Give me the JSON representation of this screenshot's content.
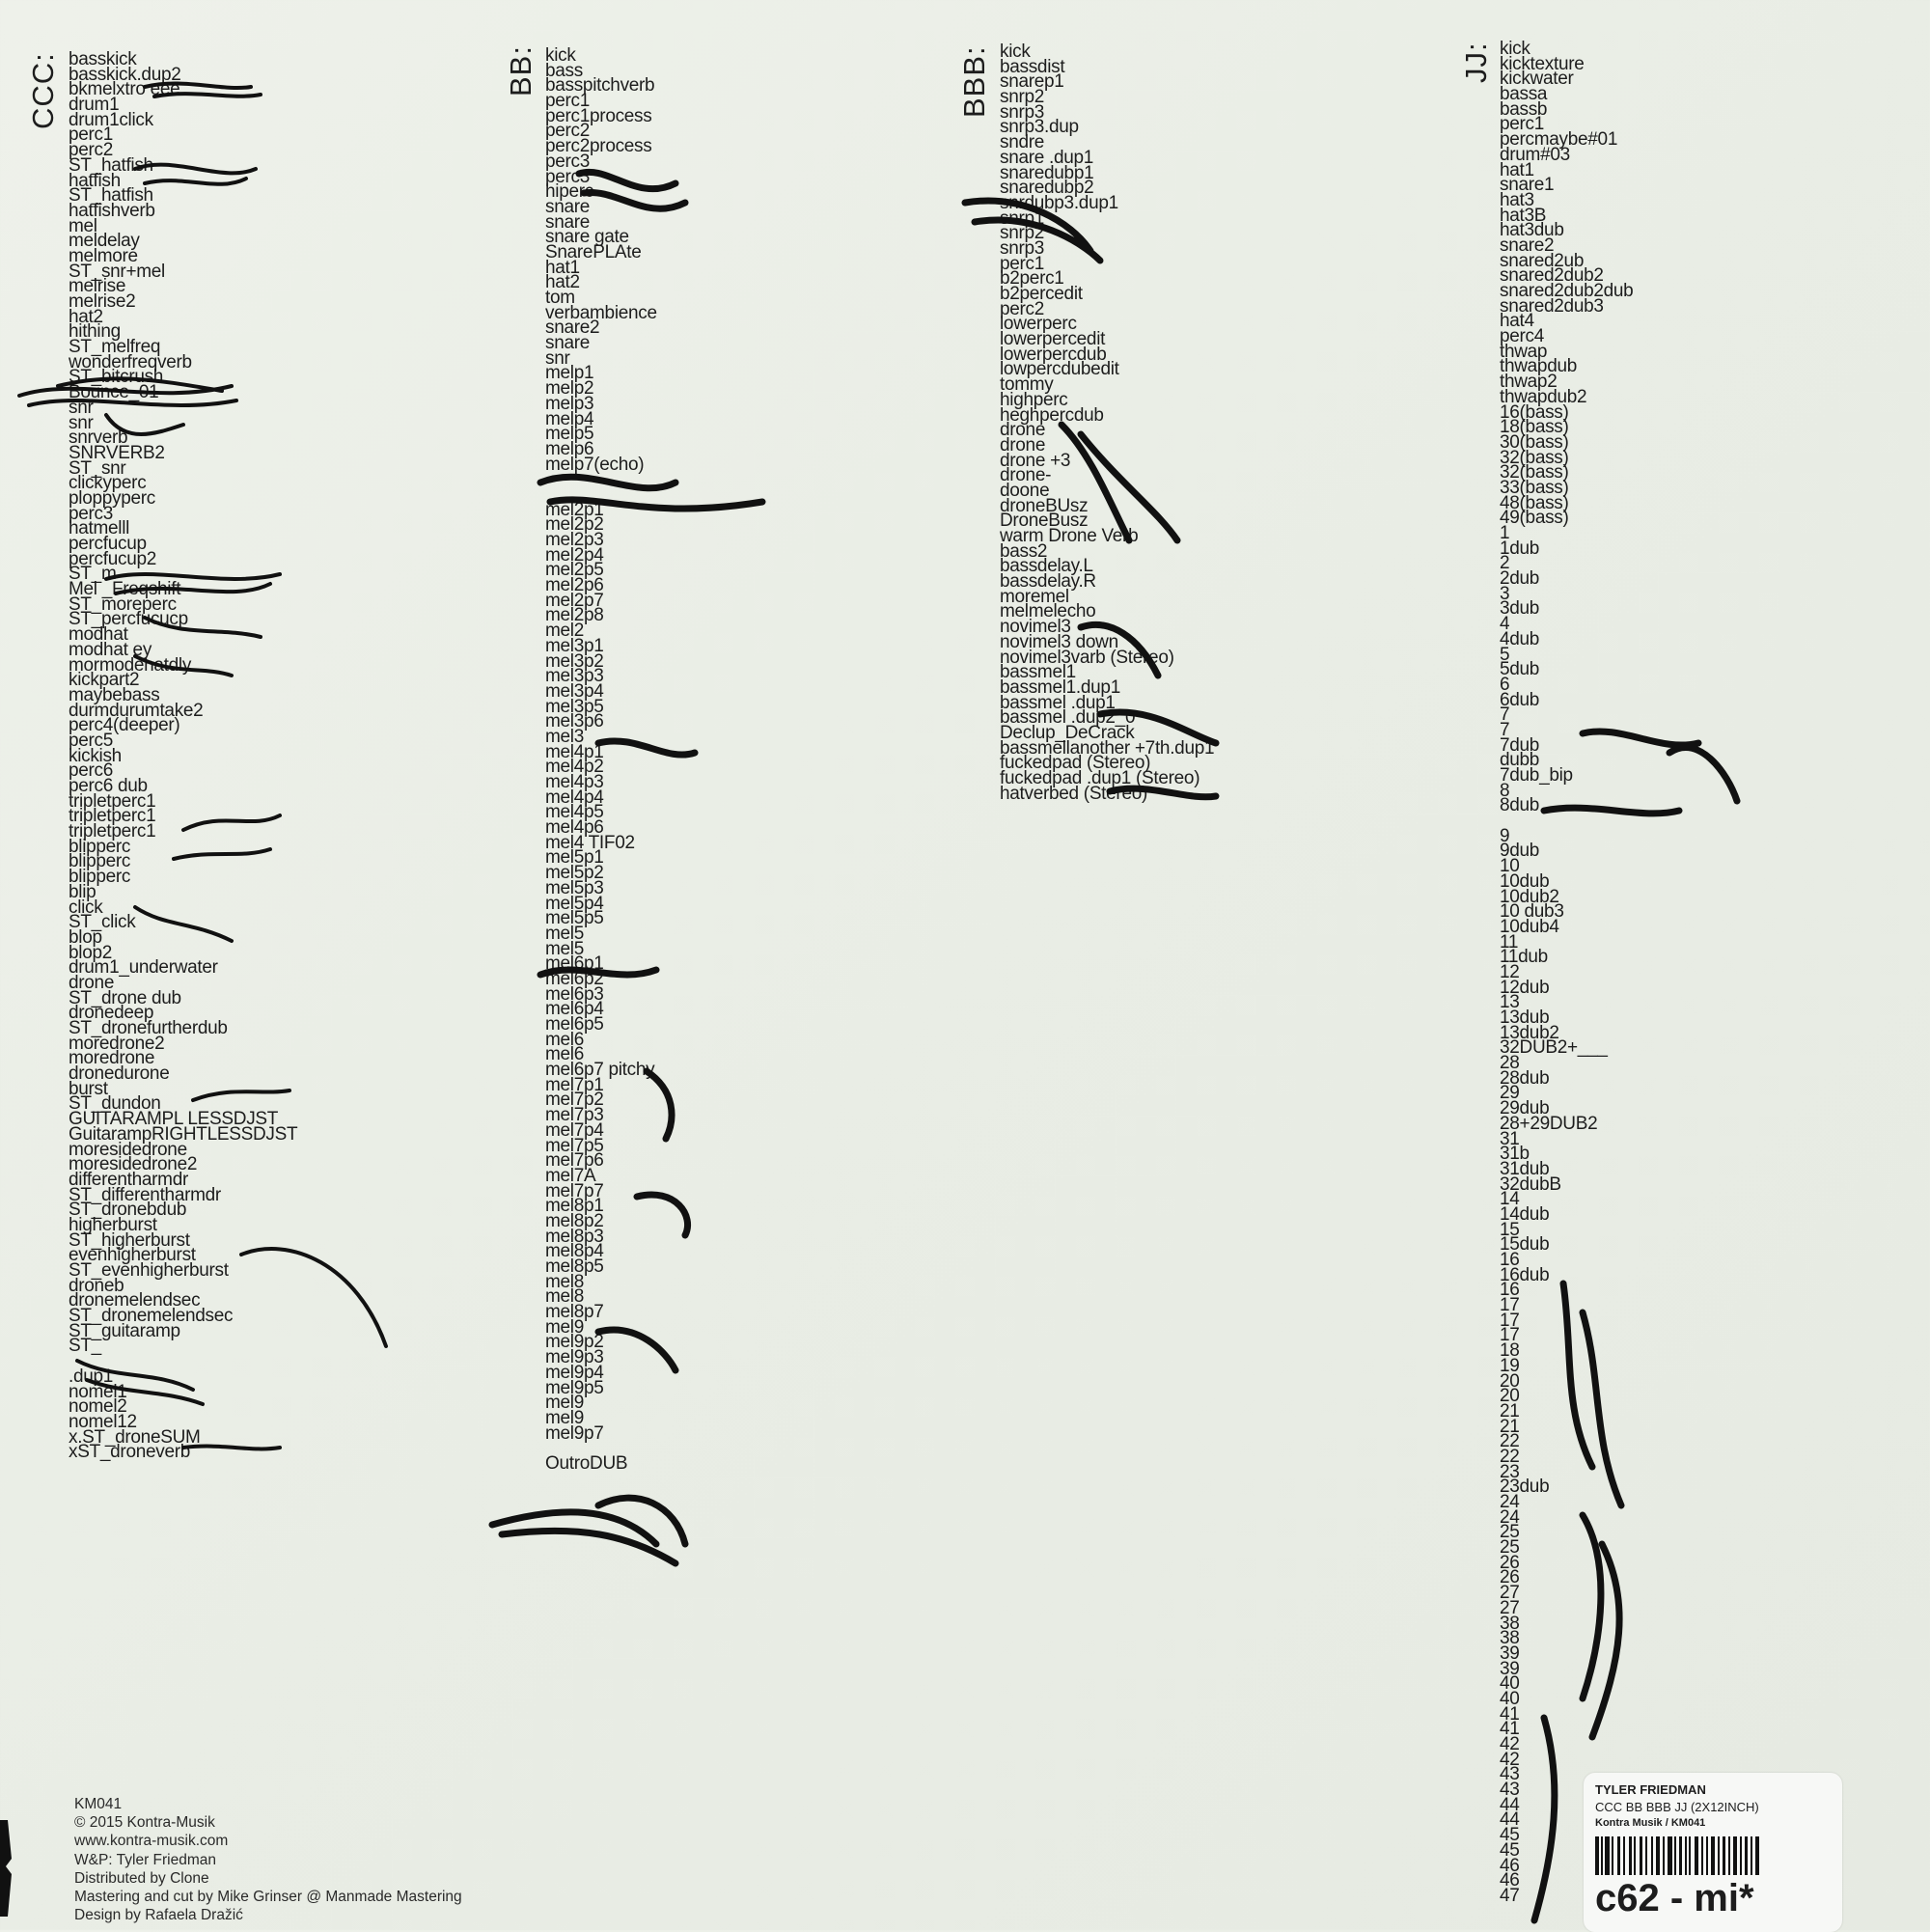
{
  "columns": {
    "ccc": {
      "label": "CCC:",
      "tracks": [
        "basskick",
        "basskick.dup2",
        "bkmelxtro      eee",
        "drum1",
        "drum1click",
        "perc1",
        "perc2",
        "ST_hatfish",
        "hatfish",
        "ST_hatfish",
        "hatfishverb",
        "mel",
        "meldelay",
        "melmore",
        "ST_snr+mel",
        "melrise",
        "melrise2",
        "hat2",
        "hithing",
        "ST_melfreq",
        "wonderfreqverb",
        "ST_bitcrush",
        "                  Bounce_01",
        "snr",
        "snr",
        "snrverb",
        "SNRVERB2",
        "ST_snr",
        "clickyperc",
        "ploppyperc",
        "perc3",
        "hatmelll",
        "percfucup",
        "percfucup2",
        "ST_m",
        "Mel                  _Freqshift",
        "ST_moreperc",
        "ST_percfucucp",
        "modhat",
        "modhat              ey",
        "mormodehatdly",
        "kickpart2",
        "maybebass",
        "durmdurumtake2",
        "perc4(deeper)",
        "perc5",
        "kickish",
        "perc6",
        "perc6 dub",
        "tripletperc1",
        "tripletperc1",
        "tripletperc1",
        "blipperc",
        "blipperc",
        "blipperc",
        "blip",
        "click",
        "ST_click",
        "blop",
        "blop2",
        "drum1_underwater",
        "drone",
        "ST_drone dub",
        "dronedeep",
        "ST_dronefurtherdub",
        "moredrone2",
        "moredrone",
        "dronedurone",
        "burst",
        "ST_dundon",
        "GUITARAMPL   LESSDJST",
        "GuitarampRIGHTLESSDJST",
        "moresidedrone",
        "moresidedrone2",
        "differentharmdr",
        "ST_differentharmdr",
        "ST_dronebdub",
        "higherburst",
        "ST_higherburst",
        "evenhigherburst",
        "ST_evenhigherburst",
        "droneb",
        "dronemelendsec",
        "ST_dronemelendsec",
        "ST_guitaramp",
        "ST_",
        "",
        "  .dup1",
        "nomel1",
        "nomel2",
        "nomel12",
        "x.ST_droneSUM",
        "xST_droneverb"
      ]
    },
    "bb": {
      "label": "BB:",
      "tracks": [
        "kick",
        "bass",
        "basspitchverb",
        "perc1",
        "perc1process",
        "perc2",
        "perc2process",
        "perc3",
        "perc3",
        "hiperc",
        "snare",
        "snare",
        "snare gate",
        "SnarePLAte",
        "hat1",
        "hat2",
        "tom",
        "verbambience",
        "snare2",
        "snare",
        "snr",
        "melp1",
        "melp2",
        "melp3",
        "melp4",
        "melp5",
        "melp6",
        "melp7(echo)",
        "",
        "",
        "mel2p1",
        "mel2p2",
        "mel2p3",
        "mel2p4",
        "mel2p5",
        "mel2p6",
        "mel2p7",
        "mel2p8",
        "mel2",
        "mel3p1",
        "mel3p2",
        "mel3p3",
        "mel3p4",
        "mel3p5",
        "mel3p6",
        "mel3",
        "mel4p1",
        "mel4p2",
        "mel4p3",
        "mel4p4",
        "mel4p5",
        "mel4p6",
        "mel4       TIF02",
        "mel5p1",
        "mel5p2",
        "mel5p3",
        "mel5p4",
        "mel5p5",
        "mel5",
        "          mel5",
        "mel6p1",
        "mel6p2",
        "mel6p3",
        "mel6p4",
        "mel6p5",
        "mel6",
        "mel6",
        "mel6p7            pitchy",
        "mel7p1",
        "mel7p2",
        "mel7p3",
        "mel7p4",
        "mel7p5",
        "mel7p6",
        "mel7A",
        "mel7p7",
        "mel8p1",
        "mel8p2",
        "mel8p3",
        "mel8p4",
        "mel8p5",
        "mel8",
        "mel8",
        "mel8p7",
        "mel9",
        "mel9p2",
        "mel9p3",
        "mel9p4",
        "mel9p5",
        "mel9",
        "mel9",
        "mel9p7",
        "",
        "                OutroDUB"
      ]
    },
    "bbb": {
      "label": "BBB:",
      "tracks": [
        "kick",
        "bassdist",
        "snarep1",
        "snrp2",
        "snrp3",
        "snrp3.dup",
        "sndre",
        "snare       .dup1",
        "snaredubp1",
        "snaredubp2",
        "snrdubp3.dup1",
        "        snrp1",
        "        snrp2",
        "        snrp3",
        "perc1",
        "b2perc1",
        "b2percedit",
        "perc2",
        "lowerperc",
        "lowerpercedit",
        "lowerpercdub",
        "lowpercdubedit",
        "tommy",
        "highperc",
        "heghpercdub",
        "drone",
        "drone",
        "drone          +3",
        "drone-",
        "doone",
        "droneBUsz",
        "DroneBusz",
        "warm Drone Verb",
        "bass2",
        "bassdelay.L",
        "bassdelay.R",
        "moremel",
        "melmelecho",
        "novimel3",
        "novimel3         down",
        "novimel3varb (Stereo)",
        "bassmel1",
        "bassmel1.dup1",
        "bassmel        .dup1",
        "bassmel           .dup2_0",
        "Declup_DeCrack",
        "bassmellanother       +7th.dup1",
        "fuckedpad (Stereo)",
        "fuckedpad              .dup1 (Stereo)",
        "hatverbed (Stereo)"
      ]
    },
    "jj": {
      "label": "JJ:",
      "tracks": [
        "kick",
        "kicktexture",
        "kickwater",
        "bassa",
        "bassb",
        "perc1",
        "percmaybe#01",
        "drum#03",
        "hat1",
        "snare1",
        "hat3",
        "hat3B",
        "hat3dub",
        "snare2",
        "snared2ub",
        "snared2dub2",
        "snared2dub2dub",
        "snared2dub3",
        "hat4",
        "perc4",
        "thwap",
        "thwapdub",
        "thwap2",
        "thwapdub2",
        "16(bass)",
        "18(bass)",
        "30(bass)",
        "32(bass)",
        "32(bass)",
        "33(bass)",
        "48(bass)",
        "49(bass)",
        "1",
        "1dub",
        "2",
        "2dub",
        "3",
        "3dub",
        "4",
        "4dub",
        "5",
        "5dub",
        "6",
        "6dub",
        "7",
        "7",
        "7dub",
        "dubb",
        "7dub_bip",
        "8",
        "8dub",
        "",
        "9",
        "9dub",
        "10",
        "10dub",
        "10dub2",
        "10 dub3",
        "10dub4",
        "11",
        "11dub",
        "12",
        "12dub",
        "13",
        "13dub",
        "13dub2",
        "32DUB2+___",
        "28",
        "28dub",
        "29",
        "29dub",
        "28+29DUB2",
        "31",
        "31b",
        "31dub",
        "32dubB",
        "14",
        "14dub",
        "15",
        "15dub",
        "16",
        "16dub",
        "16",
        "17",
        "17",
        "17",
        "18",
        "19",
        "20",
        "20",
        "21",
        "21",
        "22",
        "22",
        "23",
        "23dub",
        "24",
        "24",
        "25",
        "25",
        "26",
        "26",
        "27",
        "27",
        "38",
        "38",
        "39",
        "39",
        "40",
        "40",
        "41",
        "41",
        "42",
        "42",
        "43",
        "43",
        "44",
        "44",
        "45",
        "45",
        "46",
        "46",
        "47"
      ]
    }
  },
  "credits": {
    "catalog": "KM041",
    "copyright": "© 2015 Kontra-Musik",
    "website": "www.kontra-musik.com",
    "writer": "W&P: Tyler Friedman",
    "distribution": "Distributed by Clone",
    "mastering": "Mastering and cut by Mike Grinser @ Manmade Mastering",
    "design": "Design by Rafaela Dražić"
  },
  "sticker": {
    "artist": "TYLER FRIEDMAN",
    "title": "CCC BB BBB JJ (2X12INCH)",
    "label_catalog": "Kontra Musik / KM041",
    "code": "c62 - mi*"
  },
  "colors": {
    "background": "#eaeee6",
    "ink": "#1d1d1d",
    "sticker": "#f7f8f6"
  }
}
